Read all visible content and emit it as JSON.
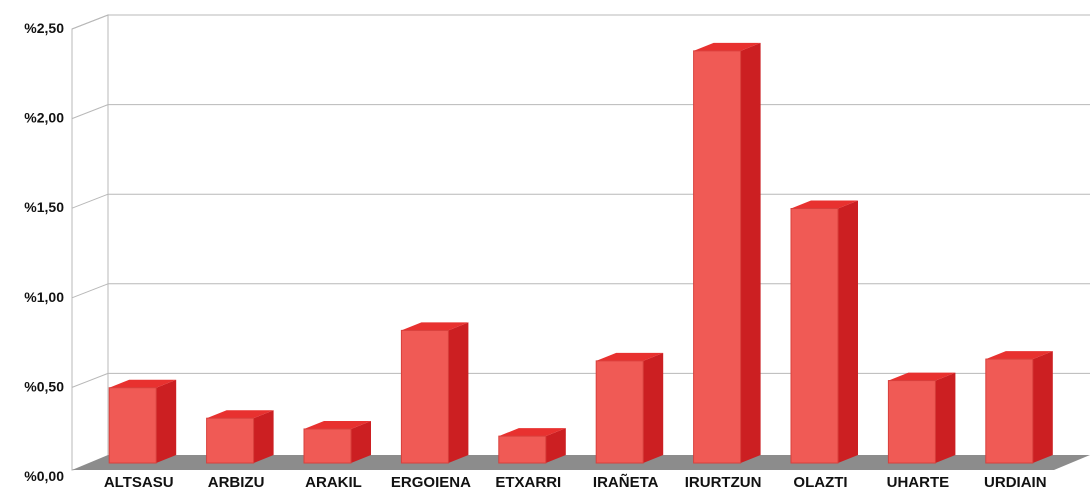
{
  "chart_data": {
    "type": "bar",
    "title": "",
    "xlabel": "",
    "ylabel": "",
    "categories": [
      "ALTSASU",
      "ARBIZU",
      "ARAKIL",
      "ERGOIENA",
      "ETXARRI",
      "IRAÑETA",
      "IRURTZUN",
      "OLAZTI",
      "UHARTE",
      "URDIAIN"
    ],
    "values": [
      0.42,
      0.25,
      0.19,
      0.74,
      0.15,
      0.57,
      2.3,
      1.42,
      0.46,
      0.58
    ],
    "ylim": [
      0,
      2.5
    ],
    "y_ticks": [
      {
        "value": 0.0,
        "label": "%0,00"
      },
      {
        "value": 0.5,
        "label": "%0,50"
      },
      {
        "value": 1.0,
        "label": "%1,00"
      },
      {
        "value": 1.5,
        "label": "%1,50"
      },
      {
        "value": 2.0,
        "label": "%2,00"
      },
      {
        "value": 2.5,
        "label": "%2,50"
      }
    ],
    "grid": true,
    "style": "3d",
    "colors": {
      "bar_front": "#f05a55",
      "bar_side": "#cc1f22",
      "bar_top": "#e8312f",
      "floor": "#8c8c8c",
      "grid": "#b8b8b8"
    }
  }
}
